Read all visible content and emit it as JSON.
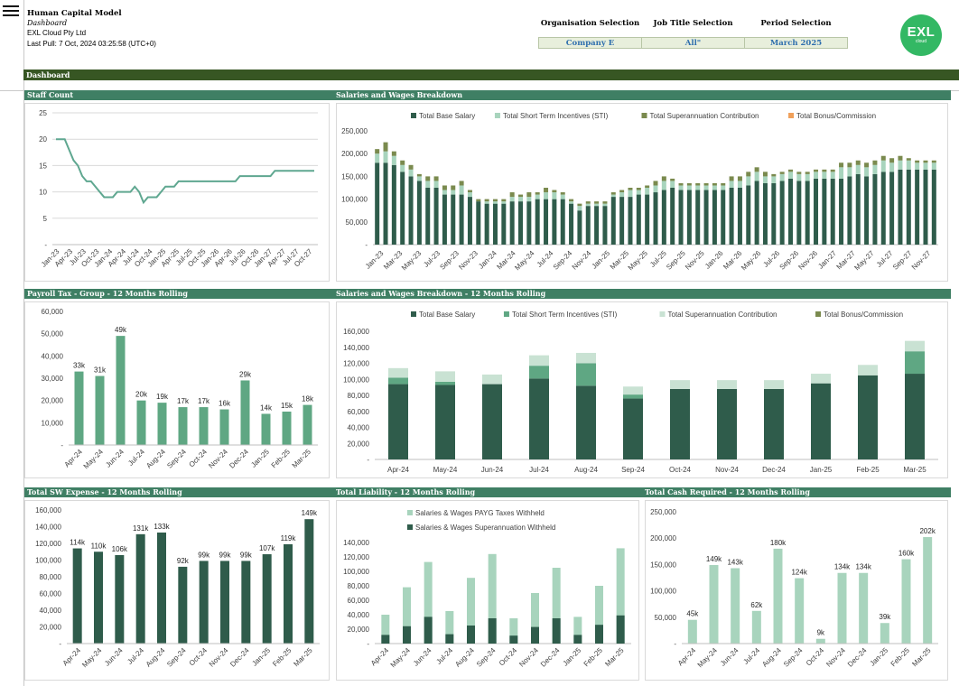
{
  "header": {
    "title": "Human Capital Model",
    "subtitle": "Dashboard",
    "company": "EXL Cloud Pty Ltd",
    "last_pull": "Last Pull: 7 Oct, 2024 03:25:58 (UTC+0)",
    "selections": [
      {
        "label": "Organisation Selection",
        "value": "Company E"
      },
      {
        "label": "Job Title Selection",
        "value": "All\""
      },
      {
        "label": "Period Selection",
        "value": "March 2025"
      }
    ],
    "logo_text": "EXL",
    "logo_sub": "cloud"
  },
  "dashboard_bar": "Dashboard",
  "sections": {
    "staff_count": "Staff Count",
    "sw_breakdown": "Salaries and Wages Breakdown",
    "payroll_tax": "Payroll Tax - Group - 12 Months Rolling",
    "sw_breakdown_12": "Salaries and Wages Breakdown - 12 Months Rolling",
    "sw_expense": "Total SW Expense - 12 Months Rolling",
    "liability": "Total Liability - 12 Months Rolling",
    "cash_required": "Total Cash Required - 12 Months Rolling"
  },
  "colors": {
    "dark_green": "#2f5c4b",
    "mid_green": "#5fa783",
    "light_green": "#a8d4bd",
    "very_light": "#c9e2d3",
    "olive": "#7a8a4e",
    "orange": "#f0a05a",
    "line": "#5fa790"
  },
  "chart_data": [
    {
      "id": "staff_count",
      "type": "line",
      "x_tick_labels": [
        "Jan-23",
        "Apr-23",
        "Jul-23",
        "Oct-23",
        "Jan-24",
        "Apr-24",
        "Jul-24",
        "Oct-24",
        "Jan-25",
        "Apr-25",
        "Jul-25",
        "Oct-25",
        "Jan-26",
        "Apr-26",
        "Jul-26",
        "Oct-26",
        "Jan-27",
        "Apr-27",
        "Jul-27",
        "Oct-27"
      ],
      "values": [
        20,
        20,
        20,
        18,
        16,
        15,
        13,
        12,
        12,
        11,
        10,
        9,
        9,
        9,
        10,
        10,
        10,
        10,
        11,
        10,
        8,
        9,
        9,
        9,
        10,
        11,
        11,
        11,
        12,
        12,
        12,
        12,
        12,
        12,
        12,
        12,
        12,
        12,
        12,
        12,
        12,
        12,
        13,
        13,
        13,
        13,
        13,
        13,
        13,
        13,
        14,
        14,
        14,
        14,
        14,
        14,
        14,
        14,
        14,
        14
      ],
      "ylim": [
        0,
        25
      ],
      "y_ticks": [
        "-",
        "5",
        "10",
        "15",
        "20",
        "25"
      ]
    },
    {
      "id": "sw_breakdown",
      "type": "bar",
      "stacked": true,
      "x_tick_labels": [
        "Jan-23",
        "Mar-23",
        "May-23",
        "Jul-23",
        "Sep-23",
        "Nov-23",
        "Jan-24",
        "Mar-24",
        "May-24",
        "Jul-24",
        "Sep-24",
        "Nov-24",
        "Jan-25",
        "Mar-25",
        "May-25",
        "Jul-25",
        "Sep-25",
        "Nov-25",
        "Jan-26",
        "Mar-26",
        "May-26",
        "Jul-26",
        "Sep-26",
        "Nov-26",
        "Jan-27",
        "Mar-27",
        "May-27",
        "Jul-27",
        "Sep-27",
        "Nov-27"
      ],
      "y_ticks": [
        "-",
        "50,000",
        "100,000",
        "150,000",
        "200,000",
        "250,000"
      ],
      "ylim": [
        0,
        250000
      ],
      "series": [
        {
          "name": "Total Base Salary",
          "values": [
            180000,
            180000,
            175000,
            160000,
            150000,
            140000,
            125000,
            125000,
            110000,
            110000,
            110000,
            105000,
            95000,
            90000,
            90000,
            90000,
            95000,
            95000,
            95000,
            100000,
            100000,
            100000,
            100000,
            90000,
            75000,
            85000,
            85000,
            85000,
            105000,
            105000,
            105000,
            110000,
            110000,
            115000,
            120000,
            125000,
            120000,
            120000,
            120000,
            120000,
            120000,
            120000,
            125000,
            125000,
            130000,
            140000,
            135000,
            135000,
            140000,
            145000,
            140000,
            140000,
            145000,
            145000,
            145000,
            145000,
            150000,
            155000,
            150000,
            155000,
            160000,
            160000,
            165000,
            165000,
            165000,
            165000,
            165000
          ]
        },
        {
          "name": "Total Short Term Incentives (STI)",
          "values": [
            0,
            0,
            0,
            0,
            0,
            0,
            0,
            0,
            0,
            0,
            0,
            0,
            0,
            0,
            0,
            0,
            0,
            0,
            0,
            0,
            0,
            0,
            0,
            0,
            0,
            0,
            0,
            0,
            0,
            0,
            0,
            0,
            0,
            0,
            0,
            0,
            0,
            0,
            0,
            0,
            0,
            0,
            0,
            0,
            0,
            0,
            0,
            0,
            0,
            0,
            0,
            0,
            0,
            0,
            0,
            0,
            0,
            0,
            0,
            0,
            0,
            0,
            0,
            0,
            0,
            0,
            0
          ]
        },
        {
          "name": "Total Superannuation Contribution",
          "values": [
            20000,
            25000,
            20000,
            15000,
            15000,
            10000,
            15000,
            15000,
            10000,
            10000,
            20000,
            10000,
            0,
            5000,
            5000,
            5000,
            10000,
            10000,
            10000,
            10000,
            15000,
            15000,
            10000,
            5000,
            10000,
            5000,
            5000,
            5000,
            5000,
            10000,
            15000,
            10000,
            15000,
            15000,
            20000,
            15000,
            10000,
            10000,
            10000,
            10000,
            10000,
            10000,
            15000,
            15000,
            20000,
            20000,
            15000,
            15000,
            15000,
            15000,
            15000,
            15000,
            15000,
            15000,
            15000,
            25000,
            20000,
            20000,
            20000,
            20000,
            25000,
            20000,
            20000,
            20000,
            15000,
            15000,
            15000
          ]
        },
        {
          "name": "Total Bonus/Commission",
          "values": [
            10000,
            20000,
            10000,
            10000,
            10000,
            5000,
            10000,
            10000,
            10000,
            10000,
            10000,
            5000,
            5000,
            5000,
            5000,
            5000,
            10000,
            5000,
            10000,
            5000,
            10000,
            5000,
            5000,
            5000,
            5000,
            5000,
            5000,
            5000,
            5000,
            5000,
            5000,
            5000,
            5000,
            10000,
            10000,
            5000,
            5000,
            5000,
            5000,
            5000,
            5000,
            5000,
            10000,
            10000,
            10000,
            10000,
            10000,
            5000,
            5000,
            5000,
            5000,
            5000,
            5000,
            5000,
            5000,
            10000,
            10000,
            10000,
            10000,
            10000,
            10000,
            10000,
            10000,
            5000,
            5000,
            5000,
            5000
          ]
        }
      ]
    },
    {
      "id": "payroll_tax",
      "type": "bar",
      "categories": [
        "Apr-24",
        "May-24",
        "Jun-24",
        "Jul-24",
        "Aug-24",
        "Sep-24",
        "Oct-24",
        "Nov-24",
        "Dec-24",
        "Jan-25",
        "Feb-25",
        "Mar-25"
      ],
      "values": [
        33000,
        31000,
        49000,
        20000,
        19000,
        17000,
        17000,
        16000,
        29000,
        14000,
        15000,
        18000
      ],
      "data_labels": [
        "33k",
        "31k",
        "49k",
        "20k",
        "19k",
        "17k",
        "17k",
        "16k",
        "29k",
        "14k",
        "15k",
        "18k"
      ],
      "y_ticks": [
        "-",
        "10,000",
        "20,000",
        "30,000",
        "40,000",
        "50,000",
        "60,000"
      ],
      "ylim": [
        0,
        60000
      ]
    },
    {
      "id": "sw_breakdown_12",
      "type": "bar",
      "stacked": true,
      "categories": [
        "Apr-24",
        "May-24",
        "Jun-24",
        "Jul-24",
        "Aug-24",
        "Sep-24",
        "Oct-24",
        "Nov-24",
        "Dec-24",
        "Jan-25",
        "Feb-25",
        "Mar-25"
      ],
      "y_ticks": [
        "-",
        "20,000",
        "40,000",
        "60,000",
        "80,000",
        "100,000",
        "120,000",
        "140,000",
        "160,000"
      ],
      "ylim": [
        0,
        160000
      ],
      "series": [
        {
          "name": "Total Base Salary",
          "values": [
            94000,
            93000,
            94000,
            101000,
            92000,
            76000,
            88000,
            88000,
            88000,
            95000,
            105000,
            107000
          ]
        },
        {
          "name": "Total Short Term Incentives (STI)",
          "values": [
            8000,
            4000,
            0,
            16000,
            28000,
            5000,
            0,
            0,
            0,
            0,
            0,
            28000
          ]
        },
        {
          "name": "Total Superannuation Contribution",
          "values": [
            12000,
            13000,
            12000,
            13000,
            13000,
            10000,
            11000,
            11000,
            11000,
            12000,
            13000,
            13000
          ]
        },
        {
          "name": "Total Bonus/Commission",
          "values": [
            0,
            0,
            0,
            0,
            0,
            0,
            0,
            0,
            0,
            0,
            0,
            0
          ]
        }
      ]
    },
    {
      "id": "sw_expense",
      "type": "bar",
      "categories": [
        "Apr-24",
        "May-24",
        "Jun-24",
        "Jul-24",
        "Aug-24",
        "Sep-24",
        "Oct-24",
        "Nov-24",
        "Dec-24",
        "Jan-25",
        "Feb-25",
        "Mar-25"
      ],
      "values": [
        114000,
        110000,
        106000,
        131000,
        133000,
        92000,
        99000,
        99000,
        99000,
        107000,
        119000,
        149000
      ],
      "data_labels": [
        "114k",
        "110k",
        "106k",
        "131k",
        "133k",
        "92k",
        "99k",
        "99k",
        "99k",
        "107k",
        "119k",
        "149k"
      ],
      "y_ticks": [
        "-",
        "20,000",
        "40,000",
        "60,000",
        "80,000",
        "100,000",
        "120,000",
        "140,000",
        "160,000"
      ],
      "ylim": [
        0,
        160000
      ]
    },
    {
      "id": "liability",
      "type": "bar",
      "categories": [
        "Apr-24",
        "May-24",
        "Jun-24",
        "Jul-24",
        "Aug-24",
        "Sep-24",
        "Oct-24",
        "Nov-24",
        "Dec-24",
        "Jan-25",
        "Feb-25",
        "Mar-25"
      ],
      "y_ticks": [
        "-",
        "20,000",
        "40,000",
        "60,000",
        "80,000",
        "100,000",
        "120,000",
        "140,000"
      ],
      "ylim": [
        0,
        140000
      ],
      "series": [
        {
          "name": "Salaries & Wages PAYG Taxes Withheld",
          "values": [
            40000,
            78000,
            113000,
            45000,
            91000,
            124000,
            35000,
            70000,
            105000,
            37000,
            80000,
            132000
          ]
        },
        {
          "name": "Salaries & Wages Superannuation Withheld",
          "values": [
            12000,
            24000,
            37000,
            13000,
            25000,
            35000,
            11000,
            23000,
            35000,
            12000,
            26000,
            39000
          ]
        }
      ]
    },
    {
      "id": "cash_required",
      "type": "bar",
      "categories": [
        "Apr-24",
        "May-24",
        "Jun-24",
        "Jul-24",
        "Aug-24",
        "Sep-24",
        "Oct-24",
        "Nov-24",
        "Dec-24",
        "Jan-25",
        "Feb-25",
        "Mar-25"
      ],
      "values": [
        45000,
        149000,
        143000,
        62000,
        180000,
        124000,
        9000,
        134000,
        134000,
        39000,
        160000,
        202000
      ],
      "data_labels": [
        "45k",
        "149k",
        "143k",
        "62k",
        "180k",
        "124k",
        "9k",
        "134k",
        "134k",
        "39k",
        "160k",
        "202k"
      ],
      "y_ticks": [
        "-",
        "50,000",
        "100,000",
        "150,000",
        "200,000",
        "250,000"
      ],
      "ylim": [
        0,
        250000
      ]
    }
  ]
}
